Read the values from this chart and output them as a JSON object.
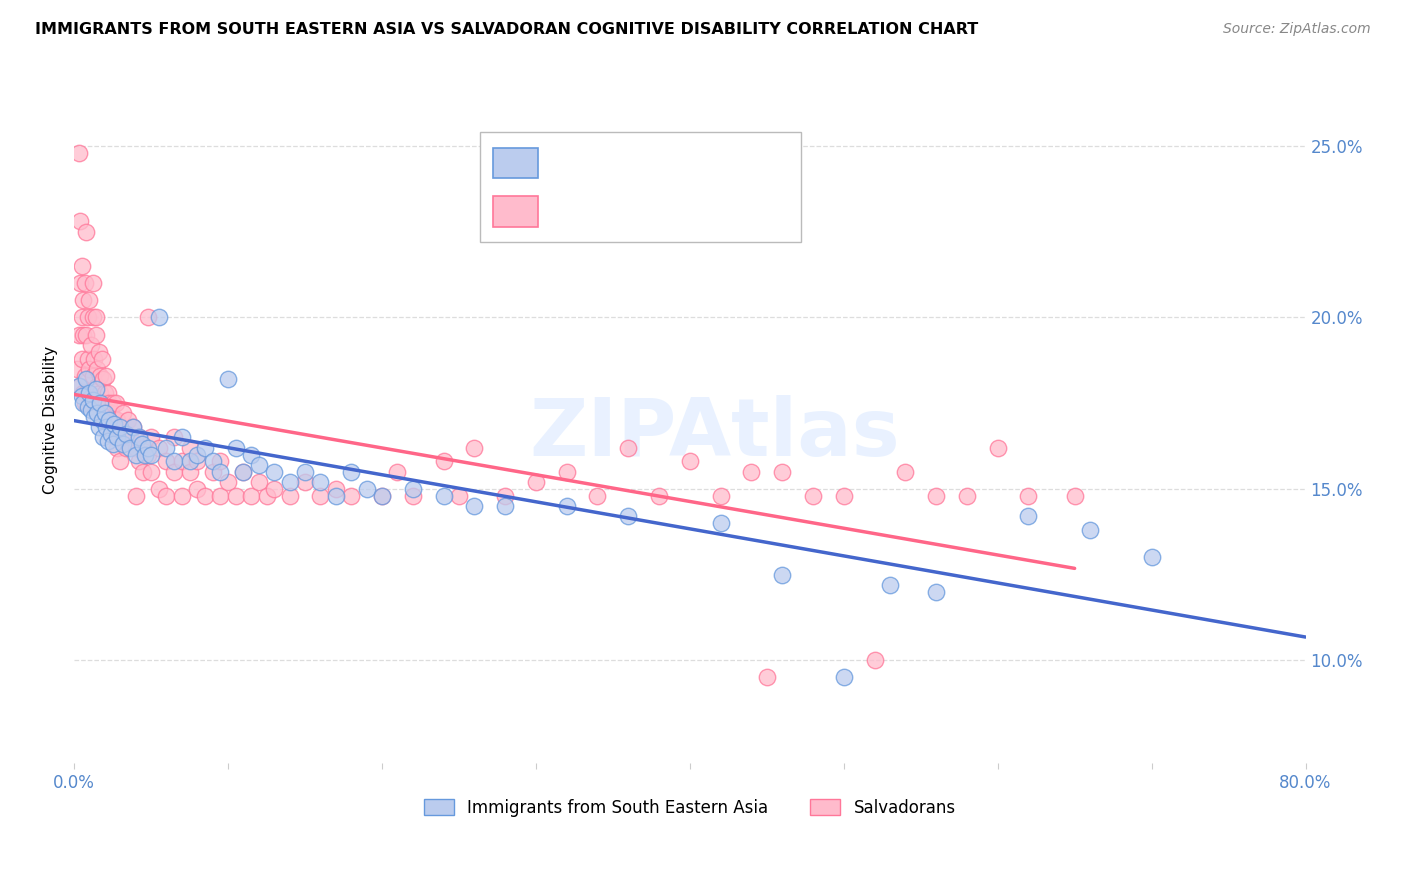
{
  "title": "IMMIGRANTS FROM SOUTH EASTERN ASIA VS SALVADORAN COGNITIVE DISABILITY CORRELATION CHART",
  "source": "Source: ZipAtlas.com",
  "ylabel": "Cognitive Disability",
  "y_ticks": [
    0.1,
    0.15,
    0.2,
    0.25
  ],
  "y_tick_labels": [
    "10.0%",
    "15.0%",
    "20.0%",
    "25.0%"
  ],
  "legend_label_blue": "Immigrants from South Eastern Asia",
  "legend_label_pink": "Salvadorans",
  "blue_fill": "#BBCCEE",
  "blue_edge": "#6699DD",
  "pink_fill": "#FFBBCC",
  "pink_edge": "#FF7799",
  "blue_line_color": "#4466CC",
  "pink_line_color": "#FF6688",
  "watermark": "ZIPAtlas",
  "blue_scatter": [
    [
      0.003,
      0.18
    ],
    [
      0.005,
      0.177
    ],
    [
      0.006,
      0.175
    ],
    [
      0.008,
      0.182
    ],
    [
      0.009,
      0.174
    ],
    [
      0.01,
      0.178
    ],
    [
      0.011,
      0.173
    ],
    [
      0.012,
      0.176
    ],
    [
      0.013,
      0.171
    ],
    [
      0.014,
      0.179
    ],
    [
      0.015,
      0.172
    ],
    [
      0.016,
      0.168
    ],
    [
      0.017,
      0.175
    ],
    [
      0.018,
      0.17
    ],
    [
      0.019,
      0.165
    ],
    [
      0.02,
      0.172
    ],
    [
      0.021,
      0.168
    ],
    [
      0.022,
      0.164
    ],
    [
      0.023,
      0.17
    ],
    [
      0.024,
      0.166
    ],
    [
      0.025,
      0.163
    ],
    [
      0.026,
      0.169
    ],
    [
      0.028,
      0.165
    ],
    [
      0.03,
      0.168
    ],
    [
      0.032,
      0.163
    ],
    [
      0.034,
      0.166
    ],
    [
      0.036,
      0.162
    ],
    [
      0.038,
      0.168
    ],
    [
      0.04,
      0.16
    ],
    [
      0.042,
      0.165
    ],
    [
      0.044,
      0.163
    ],
    [
      0.046,
      0.16
    ],
    [
      0.048,
      0.162
    ],
    [
      0.05,
      0.16
    ],
    [
      0.055,
      0.2
    ],
    [
      0.06,
      0.162
    ],
    [
      0.065,
      0.158
    ],
    [
      0.07,
      0.165
    ],
    [
      0.075,
      0.158
    ],
    [
      0.08,
      0.16
    ],
    [
      0.085,
      0.162
    ],
    [
      0.09,
      0.158
    ],
    [
      0.095,
      0.155
    ],
    [
      0.1,
      0.182
    ],
    [
      0.105,
      0.162
    ],
    [
      0.11,
      0.155
    ],
    [
      0.115,
      0.16
    ],
    [
      0.12,
      0.157
    ],
    [
      0.13,
      0.155
    ],
    [
      0.14,
      0.152
    ],
    [
      0.15,
      0.155
    ],
    [
      0.16,
      0.152
    ],
    [
      0.17,
      0.148
    ],
    [
      0.18,
      0.155
    ],
    [
      0.19,
      0.15
    ],
    [
      0.2,
      0.148
    ],
    [
      0.22,
      0.15
    ],
    [
      0.24,
      0.148
    ],
    [
      0.26,
      0.145
    ],
    [
      0.28,
      0.145
    ],
    [
      0.32,
      0.145
    ],
    [
      0.36,
      0.142
    ],
    [
      0.42,
      0.14
    ],
    [
      0.46,
      0.125
    ],
    [
      0.5,
      0.095
    ],
    [
      0.53,
      0.122
    ],
    [
      0.56,
      0.12
    ],
    [
      0.62,
      0.142
    ],
    [
      0.66,
      0.138
    ],
    [
      0.7,
      0.13
    ]
  ],
  "pink_scatter": [
    [
      0.002,
      0.185
    ],
    [
      0.003,
      0.195
    ],
    [
      0.003,
      0.248
    ],
    [
      0.004,
      0.228
    ],
    [
      0.004,
      0.21
    ],
    [
      0.004,
      0.18
    ],
    [
      0.005,
      0.2
    ],
    [
      0.005,
      0.188
    ],
    [
      0.005,
      0.215
    ],
    [
      0.006,
      0.178
    ],
    [
      0.006,
      0.195
    ],
    [
      0.006,
      0.205
    ],
    [
      0.007,
      0.21
    ],
    [
      0.007,
      0.183
    ],
    [
      0.007,
      0.175
    ],
    [
      0.008,
      0.195
    ],
    [
      0.008,
      0.178
    ],
    [
      0.008,
      0.225
    ],
    [
      0.009,
      0.188
    ],
    [
      0.009,
      0.2
    ],
    [
      0.01,
      0.205
    ],
    [
      0.01,
      0.178
    ],
    [
      0.01,
      0.185
    ],
    [
      0.011,
      0.192
    ],
    [
      0.011,
      0.175
    ],
    [
      0.012,
      0.2
    ],
    [
      0.012,
      0.183
    ],
    [
      0.012,
      0.21
    ],
    [
      0.013,
      0.188
    ],
    [
      0.013,
      0.175
    ],
    [
      0.014,
      0.195
    ],
    [
      0.014,
      0.2
    ],
    [
      0.015,
      0.18
    ],
    [
      0.015,
      0.185
    ],
    [
      0.016,
      0.175
    ],
    [
      0.016,
      0.19
    ],
    [
      0.017,
      0.183
    ],
    [
      0.017,
      0.178
    ],
    [
      0.018,
      0.188
    ],
    [
      0.018,
      0.175
    ],
    [
      0.019,
      0.182
    ],
    [
      0.019,
      0.175
    ],
    [
      0.02,
      0.178
    ],
    [
      0.02,
      0.17
    ],
    [
      0.021,
      0.175
    ],
    [
      0.021,
      0.183
    ],
    [
      0.022,
      0.172
    ],
    [
      0.022,
      0.178
    ],
    [
      0.023,
      0.17
    ],
    [
      0.023,
      0.175
    ],
    [
      0.024,
      0.172
    ],
    [
      0.025,
      0.168
    ],
    [
      0.025,
      0.175
    ],
    [
      0.026,
      0.17
    ],
    [
      0.027,
      0.165
    ],
    [
      0.027,
      0.175
    ],
    [
      0.028,
      0.17
    ],
    [
      0.028,
      0.162
    ],
    [
      0.03,
      0.168
    ],
    [
      0.03,
      0.158
    ],
    [
      0.032,
      0.165
    ],
    [
      0.032,
      0.172
    ],
    [
      0.034,
      0.162
    ],
    [
      0.035,
      0.17
    ],
    [
      0.036,
      0.165
    ],
    [
      0.038,
      0.168
    ],
    [
      0.04,
      0.162
    ],
    [
      0.04,
      0.148
    ],
    [
      0.042,
      0.158
    ],
    [
      0.042,
      0.165
    ],
    [
      0.045,
      0.155
    ],
    [
      0.045,
      0.162
    ],
    [
      0.048,
      0.2
    ],
    [
      0.048,
      0.16
    ],
    [
      0.05,
      0.165
    ],
    [
      0.05,
      0.155
    ],
    [
      0.055,
      0.162
    ],
    [
      0.055,
      0.15
    ],
    [
      0.06,
      0.158
    ],
    [
      0.06,
      0.148
    ],
    [
      0.065,
      0.155
    ],
    [
      0.065,
      0.165
    ],
    [
      0.07,
      0.148
    ],
    [
      0.07,
      0.158
    ],
    [
      0.075,
      0.155
    ],
    [
      0.075,
      0.162
    ],
    [
      0.08,
      0.15
    ],
    [
      0.08,
      0.158
    ],
    [
      0.085,
      0.148
    ],
    [
      0.09,
      0.155
    ],
    [
      0.095,
      0.148
    ],
    [
      0.095,
      0.158
    ],
    [
      0.1,
      0.152
    ],
    [
      0.105,
      0.148
    ],
    [
      0.11,
      0.155
    ],
    [
      0.115,
      0.148
    ],
    [
      0.12,
      0.152
    ],
    [
      0.125,
      0.148
    ],
    [
      0.13,
      0.15
    ],
    [
      0.14,
      0.148
    ],
    [
      0.15,
      0.152
    ],
    [
      0.16,
      0.148
    ],
    [
      0.17,
      0.15
    ],
    [
      0.18,
      0.148
    ],
    [
      0.2,
      0.148
    ],
    [
      0.21,
      0.155
    ],
    [
      0.22,
      0.148
    ],
    [
      0.24,
      0.158
    ],
    [
      0.25,
      0.148
    ],
    [
      0.26,
      0.162
    ],
    [
      0.28,
      0.148
    ],
    [
      0.3,
      0.152
    ],
    [
      0.32,
      0.155
    ],
    [
      0.34,
      0.148
    ],
    [
      0.36,
      0.162
    ],
    [
      0.38,
      0.148
    ],
    [
      0.4,
      0.158
    ],
    [
      0.42,
      0.148
    ],
    [
      0.44,
      0.155
    ],
    [
      0.45,
      0.095
    ],
    [
      0.46,
      0.155
    ],
    [
      0.48,
      0.148
    ],
    [
      0.5,
      0.148
    ],
    [
      0.52,
      0.1
    ],
    [
      0.54,
      0.155
    ],
    [
      0.56,
      0.148
    ],
    [
      0.58,
      0.148
    ],
    [
      0.6,
      0.162
    ],
    [
      0.62,
      0.148
    ],
    [
      0.65,
      0.148
    ]
  ],
  "xlim": [
    0.0,
    0.8
  ],
  "ylim": [
    0.07,
    0.27
  ],
  "figsize": [
    14.06,
    8.92
  ],
  "dpi": 100
}
